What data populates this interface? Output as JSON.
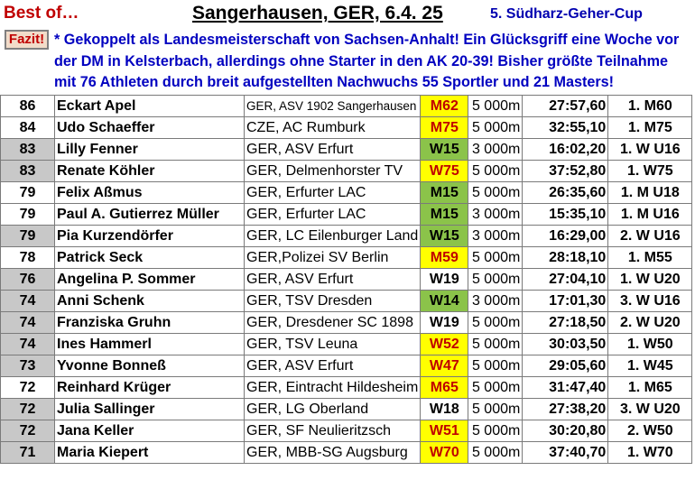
{
  "header": {
    "best_of": "Best of…",
    "event": "Sangerhausen, GER, 6.4. 25",
    "cup": "5. Südharz-Geher-Cup"
  },
  "fazit": {
    "label": "Fazit!",
    "text": "* Gekoppelt als Landesmeisterschaft von Sachsen-Anhalt! Ein Glücksgriff eine Woche vor der DM in Kelsterbach, allerdings ohne Starter in den AK 20-39! Bisher größte Teilnahme mit 76 Athleten durch breit aufgestellten Nachwuchs 55 Sportler und 21 Masters!"
  },
  "colors": {
    "yellow": "#ffff00",
    "green": "#8bc34a",
    "grey": "#c8c8c8",
    "title_red": "#c00000",
    "blue": "#0000c0"
  },
  "rows": [
    {
      "pts": "86",
      "shade": false,
      "name": "Eckart Apel",
      "club": "GER, ASV 1902 Sangerhausen",
      "small": true,
      "ak": "M62",
      "akc": "yel",
      "dist": "5 000m",
      "time": "27:57,60",
      "place": "1. M60"
    },
    {
      "pts": "84",
      "shade": false,
      "name": "Udo Schaeffer",
      "club": "CZE, AC Rumburk",
      "small": false,
      "ak": "M75",
      "akc": "yel",
      "dist": "5 000m",
      "time": "32:55,10",
      "place": "1. M75"
    },
    {
      "pts": "83",
      "shade": true,
      "name": "Lilly Fenner",
      "club": "GER, ASV Erfurt",
      "small": false,
      "ak": "W15",
      "akc": "grn",
      "dist": "3 000m",
      "time": "16:02,20",
      "place": "1. W U16"
    },
    {
      "pts": "83",
      "shade": true,
      "name": "Renate Köhler",
      "club": "GER, Delmenhorster TV",
      "small": false,
      "ak": "W75",
      "akc": "yel",
      "dist": "5 000m",
      "time": "37:52,80",
      "place": "1. W75"
    },
    {
      "pts": "79",
      "shade": false,
      "name": "Felix Aßmus",
      "club": "GER, Erfurter LAC",
      "small": false,
      "ak": "M15",
      "akc": "grn",
      "dist": "5 000m",
      "time": "26:35,60",
      "place": "1. M U18"
    },
    {
      "pts": "79",
      "shade": false,
      "name": "Paul A. Gutierrez Müller",
      "club": "GER, Erfurter LAC",
      "small": false,
      "ak": "M15",
      "akc": "grn",
      "dist": "3 000m",
      "time": "15:35,10",
      "place": "1. M U16"
    },
    {
      "pts": "79",
      "shade": true,
      "name": "Pia Kurzendörfer",
      "club": "GER, LC Eilenburger Land",
      "small": false,
      "ak": "W15",
      "akc": "grn",
      "dist": "3 000m",
      "time": "16:29,00",
      "place": "2. W U16"
    },
    {
      "pts": "78",
      "shade": false,
      "name": "Patrick Seck",
      "club": "GER,Polizei SV Berlin",
      "small": false,
      "ak": "M59",
      "akc": "yel",
      "dist": "5 000m",
      "time": "28:18,10",
      "place": "1. M55"
    },
    {
      "pts": "76",
      "shade": true,
      "name": "Angelina P. Sommer",
      "club": "GER, ASV Erfurt",
      "small": false,
      "ak": "W19",
      "akc": "wht",
      "dist": "5 000m",
      "time": "27:04,10",
      "place": "1. W U20"
    },
    {
      "pts": "74",
      "shade": true,
      "name": "Anni Schenk",
      "club": "GER, TSV Dresden",
      "small": false,
      "ak": "W14",
      "akc": "grn",
      "dist": "3 000m",
      "time": "17:01,30",
      "place": "3. W U16"
    },
    {
      "pts": "74",
      "shade": true,
      "name": "Franziska Gruhn",
      "club": "GER, Dresdener SC 1898",
      "small": false,
      "ak": "W19",
      "akc": "wht",
      "dist": "5 000m",
      "time": "27:18,50",
      "place": "2. W U20"
    },
    {
      "pts": "74",
      "shade": true,
      "name": "Ines Hammerl",
      "club": "GER, TSV Leuna",
      "small": false,
      "ak": "W52",
      "akc": "yel",
      "dist": "5 000m",
      "time": "30:03,50",
      "place": "1. W50"
    },
    {
      "pts": "73",
      "shade": true,
      "name": "Yvonne Bonneß",
      "club": "GER, ASV Erfurt",
      "small": false,
      "ak": "W47",
      "akc": "yel",
      "dist": "5 000m",
      "time": "29:05,60",
      "place": "1. W45"
    },
    {
      "pts": "72",
      "shade": false,
      "name": "Reinhard Krüger",
      "club": "GER, Eintracht Hildesheim",
      "small": false,
      "ak": "M65",
      "akc": "yel",
      "dist": "5 000m",
      "time": "31:47,40",
      "place": "1. M65"
    },
    {
      "pts": "72",
      "shade": true,
      "name": "Julia Sallinger",
      "club": "GER, LG Oberland",
      "small": false,
      "ak": "W18",
      "akc": "wht",
      "dist": "5 000m",
      "time": "27:38,20",
      "place": "3. W U20"
    },
    {
      "pts": "72",
      "shade": true,
      "name": "Jana Keller",
      "club": "GER, SF Neulieritzsch",
      "small": false,
      "ak": "W51",
      "akc": "yel",
      "dist": "5 000m",
      "time": "30:20,80",
      "place": "2. W50"
    },
    {
      "pts": "71",
      "shade": true,
      "name": "Maria Kiepert",
      "club": "GER, MBB-SG Augsburg",
      "small": false,
      "ak": "W70",
      "akc": "yel",
      "dist": "5 000m",
      "time": "37:40,70",
      "place": "1. W70"
    }
  ]
}
